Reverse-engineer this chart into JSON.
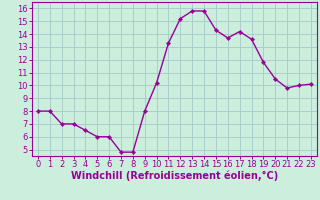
{
  "x": [
    0,
    1,
    2,
    3,
    4,
    5,
    6,
    7,
    8,
    9,
    10,
    11,
    12,
    13,
    14,
    15,
    16,
    17,
    18,
    19,
    20,
    21,
    22,
    23
  ],
  "y": [
    8,
    8,
    7,
    7,
    6.5,
    6,
    6,
    4.8,
    4.8,
    8,
    10.2,
    13.3,
    15.2,
    15.8,
    15.8,
    14.3,
    13.7,
    14.2,
    13.6,
    11.8,
    10.5,
    9.8,
    10,
    10.1
  ],
  "line_color": "#990099",
  "marker": "D",
  "markersize": 2.2,
  "linewidth": 1.0,
  "bg_color": "#cceedd",
  "grid_color": "#aacccc",
  "xlabel": "Windchill (Refroidissement éolien,°C)",
  "xlabel_color": "#990099",
  "tick_color": "#990099",
  "ylim": [
    4.5,
    16.5
  ],
  "xlim": [
    -0.5,
    23.5
  ],
  "yticks": [
    5,
    6,
    7,
    8,
    9,
    10,
    11,
    12,
    13,
    14,
    15,
    16
  ],
  "xticks": [
    0,
    1,
    2,
    3,
    4,
    5,
    6,
    7,
    8,
    9,
    10,
    11,
    12,
    13,
    14,
    15,
    16,
    17,
    18,
    19,
    20,
    21,
    22,
    23
  ],
  "tick_fontsize": 6.0,
  "xlabel_fontsize": 7.0
}
